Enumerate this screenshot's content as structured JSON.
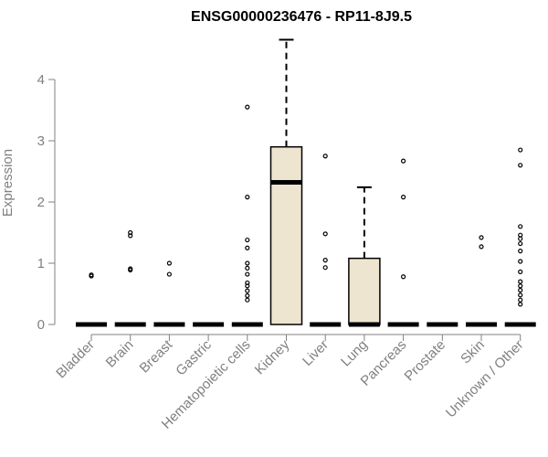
{
  "chart_data": {
    "type": "boxplot",
    "title": "ENSG00000236476 - RP11-8J9.5",
    "xlabel": "",
    "ylabel": "Expression",
    "ylim": [
      0,
      4.6
    ],
    "yticks": [
      0,
      1,
      2,
      3,
      4
    ],
    "grid": false,
    "legend": "none",
    "categories": [
      "Bladder",
      "Brain",
      "Breast",
      "Gastric",
      "Hematopoietic cells",
      "Kidney",
      "Liver",
      "Lung",
      "Pancreas",
      "Prostate",
      "Skin",
      "Unknown / Other"
    ],
    "boxes": [
      {
        "name": "Bladder",
        "min": 0,
        "q1": 0,
        "median": 0,
        "q3": 0,
        "max": 0,
        "outliers": [
          0.79,
          0.81
        ]
      },
      {
        "name": "Brain",
        "min": 0,
        "q1": 0,
        "median": 0,
        "q3": 0,
        "max": 0,
        "outliers": [
          0.89,
          0.91,
          1.45,
          1.5
        ]
      },
      {
        "name": "Breast",
        "min": 0,
        "q1": 0,
        "median": 0,
        "q3": 0,
        "max": 0,
        "outliers": [
          0.82,
          1.0
        ]
      },
      {
        "name": "Gastric",
        "min": 0,
        "q1": 0,
        "median": 0,
        "q3": 0,
        "max": 0,
        "outliers": []
      },
      {
        "name": "Hematopoietic cells",
        "min": 0,
        "q1": 0,
        "median": 0,
        "q3": 0,
        "max": 0,
        "outliers": [
          0.4,
          0.47,
          0.55,
          0.63,
          0.68,
          0.82,
          0.92,
          1.0,
          1.25,
          1.38,
          2.08,
          3.55
        ]
      },
      {
        "name": "Kidney",
        "min": 0,
        "q1": 0,
        "median": 2.32,
        "q3": 2.9,
        "max": 4.65,
        "outliers": []
      },
      {
        "name": "Liver",
        "min": 0,
        "q1": 0,
        "median": 0,
        "q3": 0,
        "max": 0,
        "outliers": [
          0.93,
          1.05,
          1.48,
          2.75
        ]
      },
      {
        "name": "Lung",
        "min": 0,
        "q1": 0,
        "median": 0,
        "q3": 1.08,
        "max": 2.24,
        "outliers": []
      },
      {
        "name": "Pancreas",
        "min": 0,
        "q1": 0,
        "median": 0,
        "q3": 0,
        "max": 0,
        "outliers": [
          0.78,
          2.08,
          2.67
        ]
      },
      {
        "name": "Prostate",
        "min": 0,
        "q1": 0,
        "median": 0,
        "q3": 0,
        "max": 0,
        "outliers": []
      },
      {
        "name": "Skin",
        "min": 0,
        "q1": 0,
        "median": 0,
        "q3": 0,
        "max": 0,
        "outliers": [
          1.27,
          1.42
        ]
      },
      {
        "name": "Unknown / Other",
        "min": 0,
        "q1": 0,
        "median": 0,
        "q3": 0,
        "max": 0,
        "outliers": [
          0.33,
          0.4,
          0.48,
          0.56,
          0.63,
          0.7,
          0.86,
          1.03,
          1.2,
          1.32,
          1.4,
          1.46,
          1.6,
          2.6,
          2.85
        ]
      }
    ],
    "colors": {
      "box_fill": "#ede5cf",
      "box_stroke": "#000000",
      "axis": "#808080",
      "title": "#000000"
    }
  }
}
